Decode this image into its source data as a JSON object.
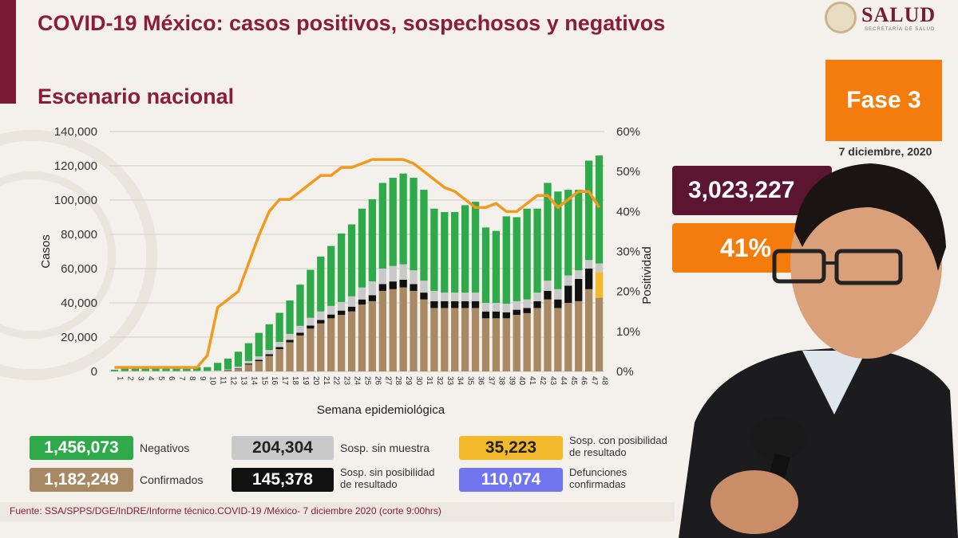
{
  "header": {
    "title": "COVID-19 México: casos positivos, sospechosos y negativos",
    "subtitle": "Escenario nacional",
    "logo_text": "SALUD",
    "logo_subtext": "SECRETARÍA DE SALUD"
  },
  "side_panel": {
    "phase": "Fase 3",
    "date": "7 diciembre, 2020",
    "total": "3,023,227",
    "positivity": "41%"
  },
  "legend": {
    "negativos": {
      "value": "1,456,073",
      "label": "Negativos",
      "color": "#2eaa4a"
    },
    "sosp_sin_muestra": {
      "value": "204,304",
      "label": "Sosp. sin muestra",
      "color": "#c9c9c9"
    },
    "sosp_con_posibilidad": {
      "value": "35,223",
      "label_l1": "Sosp. con posibilidad",
      "label_l2": "de resultado",
      "color": "#f4b92b"
    },
    "confirmados": {
      "value": "1,182,249",
      "label": "Confirmados",
      "color": "#a88963"
    },
    "sosp_sin_posibilidad": {
      "value": "145,378",
      "label_l1": "Sosp. sin posibilidad",
      "label_l2": "de resultado",
      "color": "#111111"
    },
    "defunciones": {
      "value": "110,074",
      "label_l1": "Defunciones",
      "label_l2": "confirmadas",
      "color": "#6f76f0"
    }
  },
  "footer": "Fuente: SSA/SPPS/DGE/InDRE/Informe técnico.COVID-19 /México- 7 diciembre 2020 (corte 9:00hrs)",
  "chart_data": {
    "type": "bar",
    "stacked": true,
    "xlabel": "Semana epidemiológica",
    "ylabel": "Casos",
    "y2label": "Positividad",
    "ylim": [
      0,
      140000
    ],
    "y2lim": [
      0,
      60
    ],
    "yticks": [
      "0",
      "20,000",
      "40,000",
      "60,000",
      "80,000",
      "100,000",
      "120,000",
      "140,000"
    ],
    "y2ticks": [
      "0%",
      "10%",
      "20%",
      "30%",
      "40%",
      "50%",
      "60%"
    ],
    "grid": true,
    "categories": [
      "1",
      "2",
      "3",
      "4",
      "5",
      "6",
      "7",
      "8",
      "9",
      "10",
      "11",
      "12",
      "13",
      "14",
      "15",
      "16",
      "17",
      "18",
      "19",
      "20",
      "21",
      "22",
      "23",
      "24",
      "25",
      "26",
      "27",
      "28",
      "29",
      "30",
      "31",
      "32",
      "33",
      "34",
      "35",
      "36",
      "37",
      "38",
      "39",
      "40",
      "41",
      "42",
      "43",
      "44",
      "45",
      "46",
      "47",
      "48"
    ],
    "series": [
      {
        "name": "Confirmados",
        "color": "#a88963",
        "values": [
          0,
          0,
          0,
          0,
          0,
          0,
          0,
          0,
          0,
          0,
          0,
          500,
          1500,
          4000,
          6000,
          9000,
          13000,
          17000,
          21000,
          25000,
          28000,
          31000,
          33000,
          35000,
          39000,
          41000,
          47000,
          48000,
          49000,
          47000,
          42000,
          37000,
          37000,
          37000,
          37000,
          37000,
          31000,
          31000,
          31000,
          33000,
          34000,
          37000,
          42000,
          37000,
          40000,
          41000,
          48000,
          43000
        ]
      },
      {
        "name": "Sosp. sin posibilidad de resultado",
        "color": "#111111",
        "values": [
          0,
          0,
          0,
          0,
          0,
          0,
          0,
          0,
          0,
          0,
          0,
          200,
          300,
          600,
          800,
          1000,
          1200,
          1400,
          1600,
          1800,
          2000,
          2200,
          2500,
          2800,
          3000,
          3500,
          4000,
          4500,
          4500,
          4000,
          4000,
          4000,
          4000,
          4000,
          4000,
          4000,
          4000,
          4000,
          3500,
          3000,
          3000,
          4000,
          5000,
          5000,
          10000,
          13000,
          12000,
          0
        ]
      },
      {
        "name": "Sosp. con posibilidad de resultado",
        "color": "#f4b92b",
        "values": [
          0,
          0,
          0,
          0,
          0,
          0,
          0,
          0,
          0,
          0,
          0,
          0,
          0,
          0,
          0,
          0,
          0,
          0,
          0,
          0,
          0,
          0,
          0,
          0,
          0,
          0,
          0,
          0,
          0,
          0,
          0,
          0,
          0,
          0,
          0,
          0,
          0,
          0,
          0,
          0,
          0,
          0,
          0,
          0,
          0,
          0,
          0,
          15000
        ]
      },
      {
        "name": "Sosp. sin muestra",
        "color": "#c9c9c9",
        "values": [
          100,
          200,
          200,
          200,
          200,
          200,
          200,
          200,
          300,
          300,
          500,
          500,
          1000,
          1500,
          2000,
          2500,
          3000,
          3500,
          4000,
          4500,
          5000,
          5000,
          5000,
          6000,
          7000,
          8000,
          9000,
          9000,
          9000,
          8000,
          7000,
          6000,
          5000,
          5000,
          5000,
          5000,
          5000,
          5000,
          5000,
          5000,
          5000,
          5000,
          6000,
          6000,
          6000,
          5000,
          5000,
          5000
        ]
      },
      {
        "name": "Negativos",
        "color": "#2eaa4a",
        "values": [
          900,
          1800,
          2300,
          2800,
          2300,
          2300,
          2300,
          2300,
          2200,
          2200,
          4500,
          6300,
          8700,
          10400,
          13700,
          15000,
          17000,
          19500,
          24000,
          28000,
          32000,
          35000,
          40000,
          42000,
          46000,
          48000,
          50000,
          51500,
          53000,
          54000,
          53000,
          48000,
          47000,
          47000,
          51000,
          53000,
          44000,
          42000,
          51000,
          49000,
          53000,
          49000,
          57000,
          57000,
          50000,
          47000,
          58000,
          63000
        ]
      }
    ],
    "line": {
      "name": "Positividad",
      "color": "#f19a1e",
      "axis": "right",
      "values": [
        1,
        1,
        1,
        1,
        1,
        1,
        1,
        1,
        1,
        4,
        16,
        18,
        20,
        27,
        34,
        40,
        43,
        43,
        45,
        47,
        49,
        49,
        51,
        51,
        52,
        53,
        53,
        53,
        53,
        52,
        50,
        48,
        46,
        45,
        43,
        41,
        41,
        42,
        40,
        40,
        42,
        44,
        44,
        41,
        43,
        45,
        45,
        41
      ]
    }
  }
}
